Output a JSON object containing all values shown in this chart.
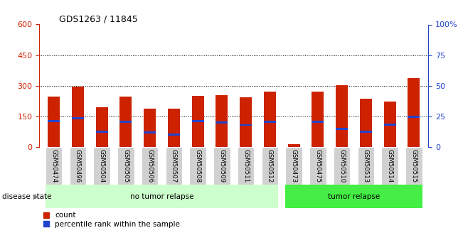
{
  "title": "GDS1263 / 11845",
  "samples": [
    "GSM50474",
    "GSM50496",
    "GSM50504",
    "GSM50505",
    "GSM50506",
    "GSM50507",
    "GSM50508",
    "GSM50509",
    "GSM50511",
    "GSM50512",
    "GSM50473",
    "GSM50475",
    "GSM50510",
    "GSM50513",
    "GSM50514",
    "GSM50515"
  ],
  "counts": [
    248,
    295,
    195,
    248,
    188,
    188,
    252,
    255,
    245,
    272,
    15,
    270,
    302,
    238,
    222,
    338
  ],
  "blue_heights": [
    128,
    142,
    75,
    122,
    70,
    60,
    128,
    120,
    108,
    125,
    0,
    122,
    88,
    75,
    110,
    148
  ],
  "group1_label": "no tumor relapse",
  "group2_label": "tumor relapse",
  "group1_count": 10,
  "group2_count": 6,
  "ylim_left": [
    0,
    600
  ],
  "ylim_right": [
    0,
    100
  ],
  "yticks_left": [
    0,
    150,
    300,
    450,
    600
  ],
  "yticks_right": [
    0,
    25,
    50,
    75,
    100
  ],
  "bar_color": "#cc2200",
  "blue_color": "#2244cc",
  "group1_color": "#ccffcc",
  "group2_color": "#44ee44",
  "label_bg_color": "#d0d0d0",
  "bg_color": "#ffffff",
  "legend_count": "count",
  "legend_pct": "percentile rank within the sample",
  "disease_state_label": "disease state",
  "bar_width": 0.5,
  "blue_bar_height": 10
}
